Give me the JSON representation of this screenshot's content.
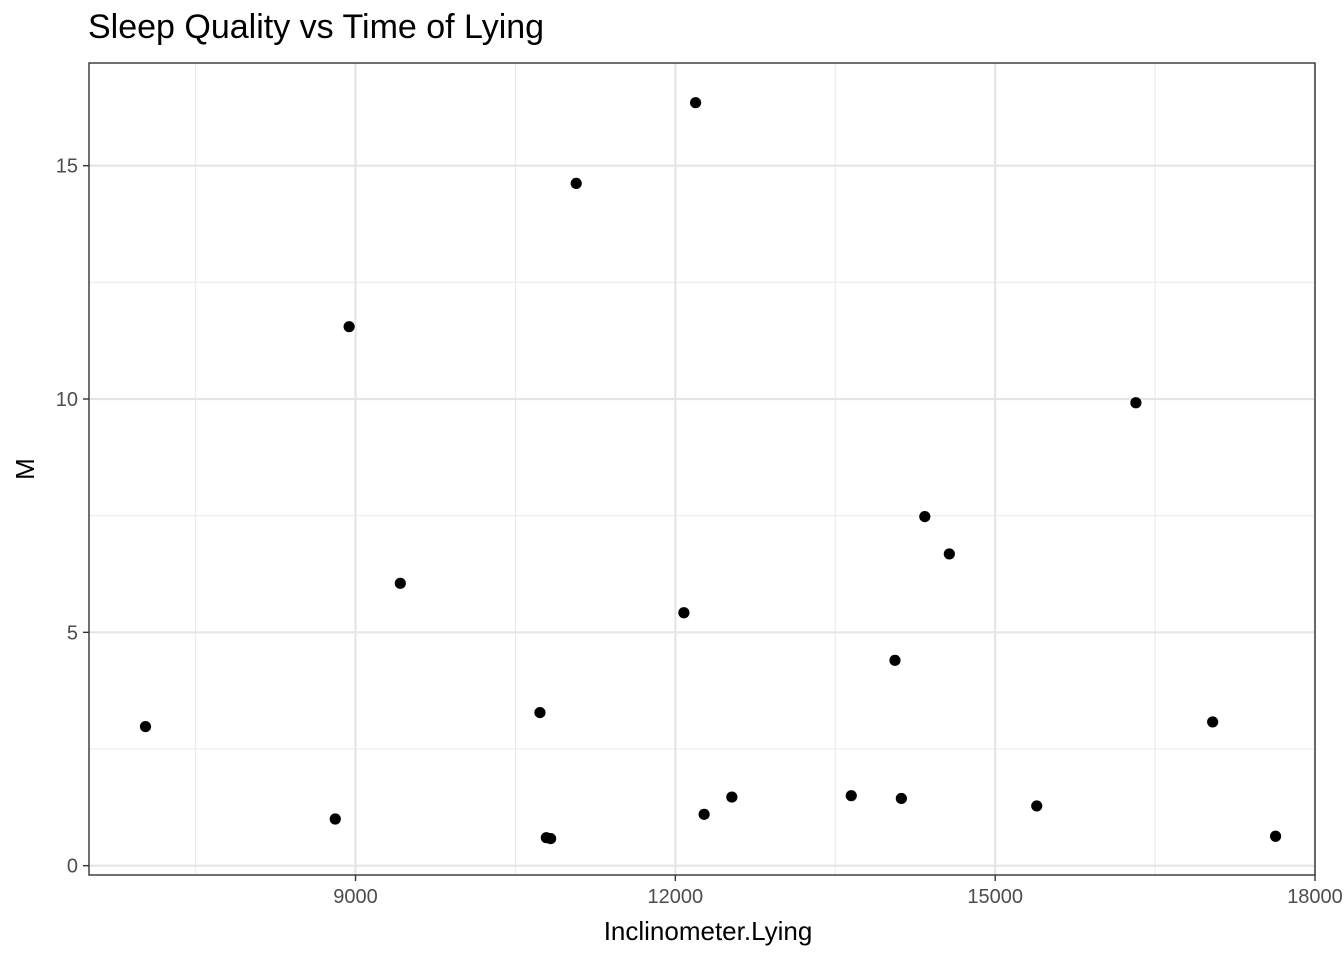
{
  "chart_data": {
    "type": "scatter",
    "title": "Sleep Quality vs Time of Lying",
    "xlabel": "Inclinometer.Lying",
    "ylabel": "M",
    "xlim": [
      6500,
      18000
    ],
    "ylim": [
      -0.2,
      17.2
    ],
    "x_ticks": [
      9000,
      12000,
      15000,
      18000
    ],
    "x_tick_labels": [
      "9000",
      "12000",
      "15000",
      "18000"
    ],
    "x_minor_ticks": [
      7500,
      10500,
      13500,
      16500
    ],
    "y_ticks": [
      0,
      5,
      10,
      15
    ],
    "y_tick_labels": [
      "0",
      "5",
      "10",
      "15"
    ],
    "y_minor_ticks": [
      2.5,
      7.5,
      12.5
    ],
    "grid": true,
    "point_color": "#000000",
    "points": [
      {
        "x": 7030,
        "y": 2.98
      },
      {
        "x": 8810,
        "y": 1.0
      },
      {
        "x": 8940,
        "y": 11.55
      },
      {
        "x": 9420,
        "y": 6.05
      },
      {
        "x": 10730,
        "y": 3.28
      },
      {
        "x": 10790,
        "y": 0.6
      },
      {
        "x": 10830,
        "y": 0.58
      },
      {
        "x": 11070,
        "y": 14.62
      },
      {
        "x": 12080,
        "y": 5.42
      },
      {
        "x": 12190,
        "y": 16.35
      },
      {
        "x": 12270,
        "y": 1.1
      },
      {
        "x": 12530,
        "y": 1.47
      },
      {
        "x": 13650,
        "y": 1.5
      },
      {
        "x": 14060,
        "y": 4.4
      },
      {
        "x": 14120,
        "y": 1.44
      },
      {
        "x": 14340,
        "y": 7.48
      },
      {
        "x": 14570,
        "y": 6.68
      },
      {
        "x": 15390,
        "y": 1.28
      },
      {
        "x": 16320,
        "y": 9.92
      },
      {
        "x": 17040,
        "y": 3.08
      },
      {
        "x": 17630,
        "y": 0.63
      }
    ]
  }
}
